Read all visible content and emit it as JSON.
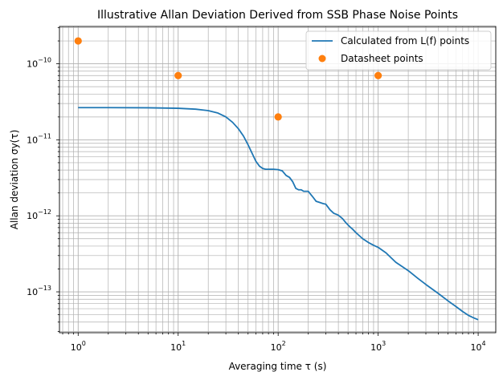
{
  "chart_data": {
    "type": "line",
    "title": "Illustrative Allan Deviation Derived from SSB Phase Noise Points",
    "xlabel": "Averaging time τ (s)",
    "ylabel": "Allan deviation σy(τ)",
    "xscale": "log",
    "yscale": "log",
    "xlim": [
      0.65,
      15000
    ],
    "ylim": [
      2.9e-14,
      3.1e-10
    ],
    "grid": "major and minor",
    "legend_position": "top-right",
    "x_ticks": [
      {
        "value": 1,
        "base": "10",
        "exp": "0"
      },
      {
        "value": 10,
        "base": "10",
        "exp": "1"
      },
      {
        "value": 100,
        "base": "10",
        "exp": "2"
      },
      {
        "value": 1000,
        "base": "10",
        "exp": "3"
      },
      {
        "value": 10000,
        "base": "10",
        "exp": "4"
      }
    ],
    "y_ticks": [
      {
        "value": 1e-13,
        "base": "10",
        "exp": "−13"
      },
      {
        "value": 1e-12,
        "base": "10",
        "exp": "−12"
      },
      {
        "value": 1e-11,
        "base": "10",
        "exp": "−11"
      },
      {
        "value": 1e-10,
        "base": "10",
        "exp": "−10"
      }
    ],
    "series": [
      {
        "name": "Calculated from L(f) points",
        "kind": "line",
        "color": "#1f77b4",
        "x": [
          1,
          2,
          5,
          10,
          15,
          20,
          25,
          30,
          35,
          40,
          45,
          50,
          55,
          60,
          65,
          70,
          75,
          80,
          90,
          100,
          110,
          120,
          130,
          140,
          150,
          160,
          170,
          180,
          200,
          220,
          240,
          260,
          280,
          300,
          330,
          360,
          380,
          400,
          440,
          480,
          520,
          560,
          600,
          700,
          800,
          900,
          1000,
          1200,
          1500,
          2000,
          2500,
          3000,
          4000,
          5000,
          6000,
          7000,
          8000,
          9000,
          10000
        ],
        "y": [
          2.65e-11,
          2.65e-11,
          2.64e-11,
          2.6e-11,
          2.53e-11,
          2.42e-11,
          2.25e-11,
          2e-11,
          1.7e-11,
          1.4e-11,
          1.12e-11,
          8.6e-12,
          6.6e-12,
          5.2e-12,
          4.5e-12,
          4.2e-12,
          4.1e-12,
          4.1e-12,
          4.1e-12,
          4.05e-12,
          3.9e-12,
          3.4e-12,
          3.2e-12,
          2.8e-12,
          2.3e-12,
          2.2e-12,
          2.2e-12,
          2.1e-12,
          2.1e-12,
          1.8e-12,
          1.55e-12,
          1.5e-12,
          1.45e-12,
          1.42e-12,
          1.2e-12,
          1.08e-12,
          1.05e-12,
          1.02e-12,
          9.2e-13,
          8e-13,
          7.2e-13,
          6.6e-13,
          6e-13,
          5e-13,
          4.45e-13,
          4.1e-13,
          3.85e-13,
          3.25e-13,
          2.45e-13,
          1.9e-13,
          1.5e-13,
          1.25e-13,
          9.5e-14,
          7.6e-14,
          6.4e-14,
          5.5e-14,
          4.9e-14,
          4.55e-14,
          4.3e-14
        ]
      },
      {
        "name": "Datasheet points",
        "kind": "scatter",
        "color": "#ff7f0e",
        "x": [
          1,
          10,
          100,
          1000
        ],
        "y": [
          2e-10,
          7e-11,
          2e-11,
          7e-11
        ]
      }
    ]
  }
}
